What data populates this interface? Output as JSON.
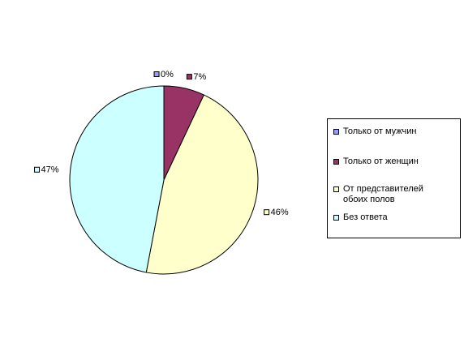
{
  "chart_data": {
    "type": "pie",
    "categories": [
      "Только от мужчин",
      "Только от женщин",
      "От представителей обоих полов",
      "Без ответа"
    ],
    "values": [
      0,
      7,
      46,
      47
    ],
    "value_labels": [
      "0%",
      "7%",
      "46%",
      "47%"
    ],
    "colors": [
      "#9999ff",
      "#993366",
      "#ffffcc",
      "#ccffff"
    ],
    "legend": "right"
  }
}
